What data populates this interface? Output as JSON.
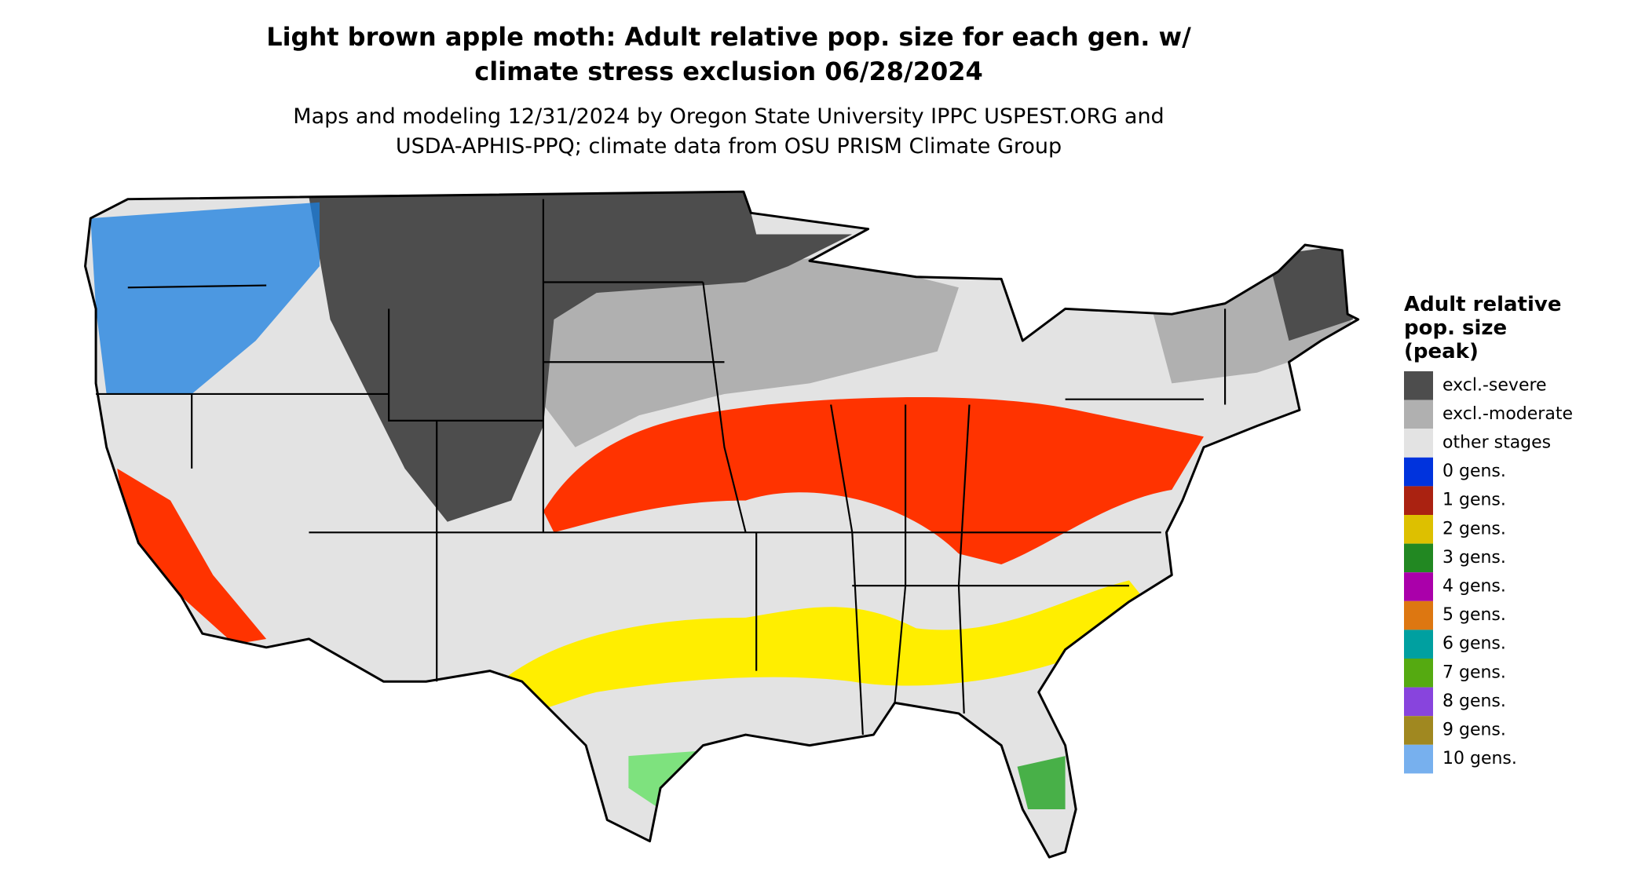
{
  "title": [
    "Light brown apple moth: Adult relative pop. size for each gen. w/",
    "climate stress exclusion 06/28/2024"
  ],
  "subtitle": [
    "Maps and modeling 12/31/2024 by Oregon State University IPPC USPEST.ORG and",
    "USDA-APHIS-PPQ; climate data from OSU PRISM Climate Group"
  ],
  "legend": {
    "title": [
      "Adult relative",
      "pop. size",
      "(peak)"
    ],
    "items": [
      {
        "label": "excl.-severe",
        "color": "#4d4d4d"
      },
      {
        "label": "excl.-moderate",
        "color": "#b0b0b0"
      },
      {
        "label": "other stages",
        "color": "#e3e3e3"
      },
      {
        "label": "0 gens.",
        "color": "#0033dd"
      },
      {
        "label": "1 gens.",
        "color": "#aa2211"
      },
      {
        "label": "2 gens.",
        "color": "#ddc000"
      },
      {
        "label": "3 gens.",
        "color": "#228822"
      },
      {
        "label": "4 gens.",
        "color": "#aa00aa"
      },
      {
        "label": "5 gens.",
        "color": "#dd7711"
      },
      {
        "label": "6 gens.",
        "color": "#00a0a0"
      },
      {
        "label": "7 gens.",
        "color": "#55aa11"
      },
      {
        "label": "8 gens.",
        "color": "#8844dd"
      },
      {
        "label": "9 gens.",
        "color": "#a08820"
      },
      {
        "label": "10 gens.",
        "color": "#77b0ee"
      }
    ]
  }
}
